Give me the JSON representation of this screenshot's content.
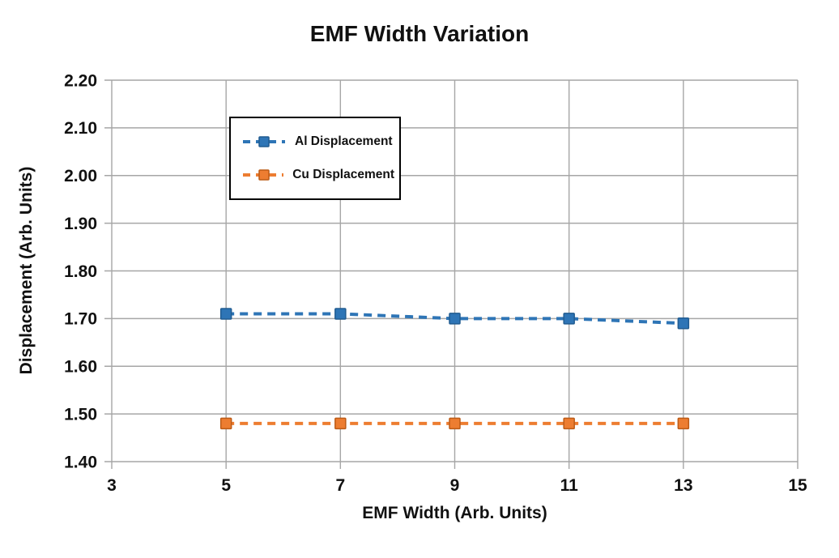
{
  "chart_data": {
    "type": "line",
    "title": "EMF Width Variation",
    "xlabel": "EMF Width (Arb. Units)",
    "ylabel": "Displacement (Arb. Units)",
    "x": [
      5,
      7,
      9,
      11,
      13
    ],
    "series": [
      {
        "name": "Al Displacement",
        "color": "#2E75B6",
        "marker_edge": "#215C91",
        "values": [
          1.71,
          1.71,
          1.7,
          1.7,
          1.69
        ]
      },
      {
        "name": "Cu Displacement",
        "color": "#ED7D31",
        "marker_edge": "#BC5B17",
        "values": [
          1.48,
          1.48,
          1.48,
          1.48,
          1.48
        ]
      }
    ],
    "xlim": [
      3,
      15
    ],
    "ylim": [
      1.4,
      2.2
    ],
    "x_tick_values": [
      3,
      5,
      7,
      9,
      11,
      13,
      15
    ],
    "x_tick_labels": [
      "3",
      "5",
      "7",
      "9",
      "11",
      "13",
      "15"
    ],
    "y_tick_values": [
      1.4,
      1.5,
      1.6,
      1.7,
      1.8,
      1.9,
      2.0,
      2.1,
      2.2
    ],
    "y_tick_labels": [
      "1.40",
      "1.50",
      "1.60",
      "1.70",
      "1.80",
      "1.90",
      "2.00",
      "2.10",
      "2.20"
    ],
    "grid": true,
    "gridline_color": "#A6A6A6",
    "line_style": "dashed",
    "marker": "square",
    "legend_position": "upper-left-inside"
  }
}
